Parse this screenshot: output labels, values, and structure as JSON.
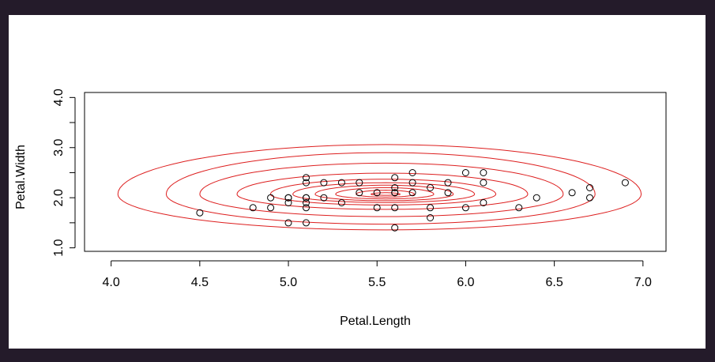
{
  "chart_data": {
    "type": "scatter",
    "title": "",
    "xlabel": "Petal.Length",
    "ylabel": "Petal.Width",
    "xlim": [
      3.85,
      7.13
    ],
    "ylim": [
      0.93,
      4.1
    ],
    "xticks": [
      4.0,
      4.5,
      5.0,
      5.5,
      6.0,
      6.5,
      7.0
    ],
    "xtick_labels": [
      "4.0",
      "4.5",
      "5.0",
      "5.5",
      "6.0",
      "6.5",
      "7.0"
    ],
    "yticks": [
      1.0,
      1.5,
      2.0,
      2.5,
      3.0,
      3.5,
      4.0
    ],
    "ytick_labels": [
      "1.0",
      "",
      "2.0",
      "",
      "3.0",
      "",
      "4.0"
    ],
    "points": {
      "x": [
        4.5,
        4.8,
        4.9,
        4.9,
        5.0,
        5.0,
        5.0,
        5.0,
        5.1,
        5.1,
        5.1,
        5.1,
        5.1,
        5.1,
        5.1,
        5.2,
        5.2,
        5.3,
        5.3,
        5.4,
        5.4,
        5.5,
        5.5,
        5.6,
        5.6,
        5.6,
        5.6,
        5.6,
        5.6,
        5.7,
        5.7,
        5.7,
        5.8,
        5.8,
        5.8,
        5.9,
        5.9,
        6.0,
        6.0,
        6.1,
        6.1,
        6.1,
        6.3,
        6.4,
        6.6,
        6.7,
        6.7,
        6.9
      ],
      "y": [
        1.7,
        1.8,
        2.0,
        1.8,
        2.0,
        1.9,
        1.5,
        2.0,
        2.4,
        2.3,
        2.0,
        1.9,
        1.8,
        1.5,
        2.0,
        2.3,
        2.0,
        2.3,
        1.9,
        2.3,
        2.1,
        2.1,
        1.8,
        2.4,
        2.2,
        2.1,
        1.8,
        1.4,
        2.1,
        2.5,
        2.3,
        2.1,
        2.2,
        1.8,
        1.6,
        2.3,
        2.1,
        2.5,
        1.8,
        2.5,
        2.3,
        1.9,
        1.8,
        2.0,
        2.1,
        2.2,
        2.0,
        2.3
      ],
      "marker": "open-circle",
      "color": "#000000"
    },
    "contours": {
      "type": "density-contour",
      "color": "#dd1f1f",
      "center": [
        5.55,
        2.07
      ],
      "levels": [
        {
          "rx": 0.08,
          "ry": 0.03
        },
        {
          "rx": 0.16,
          "ry": 0.08
        },
        {
          "rx": 0.27,
          "ry": 0.13
        },
        {
          "rx": 0.38,
          "ry": 0.18
        },
        {
          "rx": 0.5,
          "ry": 0.23
        },
        {
          "rx": 0.62,
          "ry": 0.3
        },
        {
          "rx": 0.8,
          "ry": 0.42
        },
        {
          "rx": 1.0,
          "ry": 0.62
        },
        {
          "rx": 1.18,
          "ry": 0.83
        },
        {
          "rx": 1.44,
          "ry": 0.99
        }
      ]
    },
    "grid": false,
    "legend": "none"
  }
}
